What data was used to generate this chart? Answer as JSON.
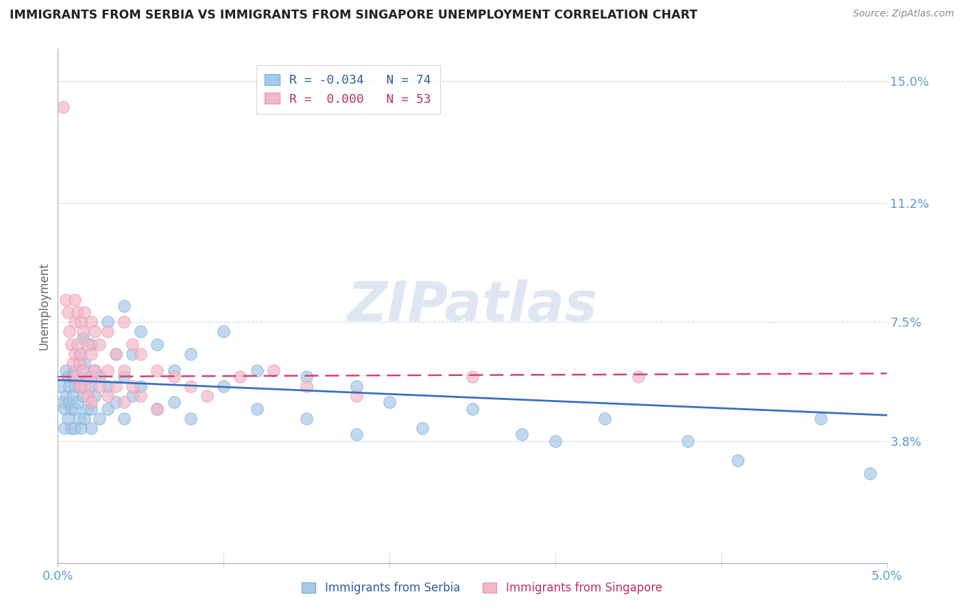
{
  "title": "IMMIGRANTS FROM SERBIA VS IMMIGRANTS FROM SINGAPORE UNEMPLOYMENT CORRELATION CHART",
  "source": "Source: ZipAtlas.com",
  "xlabel_label": "Immigrants from Serbia",
  "ylabel_label": "Unemployment",
  "xlabel2_label": "Immigrants from Singapore",
  "x_min": 0.0,
  "x_max": 0.05,
  "y_min": 0.0,
  "y_max": 0.16,
  "y_ticks": [
    0.038,
    0.075,
    0.112,
    0.15
  ],
  "y_tick_labels": [
    "3.8%",
    "7.5%",
    "11.2%",
    "15.0%"
  ],
  "x_ticks": [
    0.0,
    0.01,
    0.02,
    0.03,
    0.04,
    0.05
  ],
  "x_tick_labels": [
    "0.0%",
    "",
    "",
    "",
    "",
    "5.0%"
  ],
  "serbia_color": "#a8c8e8",
  "singapore_color": "#f4b8c8",
  "serbia_line_color": "#3a6fbd",
  "singapore_line_color": "#d44070",
  "watermark": "ZIPatlas",
  "serbia_R": -0.034,
  "serbia_N": 74,
  "singapore_R": 0.0,
  "singapore_N": 53,
  "serbia_points": [
    [
      0.0002,
      0.055
    ],
    [
      0.0003,
      0.05
    ],
    [
      0.0004,
      0.048
    ],
    [
      0.0004,
      0.042
    ],
    [
      0.0005,
      0.06
    ],
    [
      0.0005,
      0.052
    ],
    [
      0.0006,
      0.058
    ],
    [
      0.0006,
      0.045
    ],
    [
      0.0007,
      0.055
    ],
    [
      0.0007,
      0.05
    ],
    [
      0.0008,
      0.048
    ],
    [
      0.0008,
      0.042
    ],
    [
      0.0009,
      0.058
    ],
    [
      0.0009,
      0.052
    ],
    [
      0.001,
      0.06
    ],
    [
      0.001,
      0.055
    ],
    [
      0.001,
      0.048
    ],
    [
      0.001,
      0.042
    ],
    [
      0.0012,
      0.058
    ],
    [
      0.0012,
      0.05
    ],
    [
      0.0013,
      0.065
    ],
    [
      0.0013,
      0.045
    ],
    [
      0.0014,
      0.055
    ],
    [
      0.0014,
      0.042
    ],
    [
      0.0015,
      0.07
    ],
    [
      0.0015,
      0.052
    ],
    [
      0.0016,
      0.062
    ],
    [
      0.0016,
      0.045
    ],
    [
      0.0018,
      0.058
    ],
    [
      0.0018,
      0.048
    ],
    [
      0.002,
      0.068
    ],
    [
      0.002,
      0.055
    ],
    [
      0.002,
      0.048
    ],
    [
      0.002,
      0.042
    ],
    [
      0.0022,
      0.06
    ],
    [
      0.0022,
      0.052
    ],
    [
      0.0025,
      0.058
    ],
    [
      0.0025,
      0.045
    ],
    [
      0.003,
      0.075
    ],
    [
      0.003,
      0.055
    ],
    [
      0.003,
      0.048
    ],
    [
      0.0035,
      0.065
    ],
    [
      0.0035,
      0.05
    ],
    [
      0.004,
      0.08
    ],
    [
      0.004,
      0.058
    ],
    [
      0.004,
      0.045
    ],
    [
      0.0045,
      0.065
    ],
    [
      0.0045,
      0.052
    ],
    [
      0.005,
      0.072
    ],
    [
      0.005,
      0.055
    ],
    [
      0.006,
      0.068
    ],
    [
      0.006,
      0.048
    ],
    [
      0.007,
      0.06
    ],
    [
      0.007,
      0.05
    ],
    [
      0.008,
      0.065
    ],
    [
      0.008,
      0.045
    ],
    [
      0.01,
      0.072
    ],
    [
      0.01,
      0.055
    ],
    [
      0.012,
      0.06
    ],
    [
      0.012,
      0.048
    ],
    [
      0.015,
      0.058
    ],
    [
      0.015,
      0.045
    ],
    [
      0.018,
      0.055
    ],
    [
      0.018,
      0.04
    ],
    [
      0.02,
      0.05
    ],
    [
      0.022,
      0.042
    ],
    [
      0.025,
      0.048
    ],
    [
      0.028,
      0.04
    ],
    [
      0.03,
      0.038
    ],
    [
      0.033,
      0.045
    ],
    [
      0.038,
      0.038
    ],
    [
      0.041,
      0.032
    ],
    [
      0.046,
      0.045
    ],
    [
      0.049,
      0.028
    ]
  ],
  "singapore_points": [
    [
      0.0003,
      0.142
    ],
    [
      0.0005,
      0.082
    ],
    [
      0.0006,
      0.078
    ],
    [
      0.0007,
      0.072
    ],
    [
      0.0008,
      0.068
    ],
    [
      0.0009,
      0.062
    ],
    [
      0.001,
      0.082
    ],
    [
      0.001,
      0.075
    ],
    [
      0.001,
      0.065
    ],
    [
      0.001,
      0.058
    ],
    [
      0.0012,
      0.078
    ],
    [
      0.0012,
      0.068
    ],
    [
      0.0013,
      0.062
    ],
    [
      0.0013,
      0.055
    ],
    [
      0.0014,
      0.075
    ],
    [
      0.0014,
      0.065
    ],
    [
      0.0015,
      0.072
    ],
    [
      0.0015,
      0.06
    ],
    [
      0.0016,
      0.078
    ],
    [
      0.0016,
      0.055
    ],
    [
      0.0018,
      0.068
    ],
    [
      0.0018,
      0.052
    ],
    [
      0.002,
      0.075
    ],
    [
      0.002,
      0.065
    ],
    [
      0.002,
      0.058
    ],
    [
      0.002,
      0.05
    ],
    [
      0.0022,
      0.072
    ],
    [
      0.0022,
      0.06
    ],
    [
      0.0025,
      0.068
    ],
    [
      0.0025,
      0.055
    ],
    [
      0.003,
      0.072
    ],
    [
      0.003,
      0.06
    ],
    [
      0.003,
      0.052
    ],
    [
      0.0035,
      0.065
    ],
    [
      0.0035,
      0.055
    ],
    [
      0.004,
      0.075
    ],
    [
      0.004,
      0.06
    ],
    [
      0.004,
      0.05
    ],
    [
      0.0045,
      0.068
    ],
    [
      0.0045,
      0.055
    ],
    [
      0.005,
      0.065
    ],
    [
      0.005,
      0.052
    ],
    [
      0.006,
      0.06
    ],
    [
      0.006,
      0.048
    ],
    [
      0.007,
      0.058
    ],
    [
      0.008,
      0.055
    ],
    [
      0.009,
      0.052
    ],
    [
      0.011,
      0.058
    ],
    [
      0.013,
      0.06
    ],
    [
      0.015,
      0.055
    ],
    [
      0.018,
      0.052
    ],
    [
      0.025,
      0.058
    ],
    [
      0.035,
      0.058
    ]
  ]
}
